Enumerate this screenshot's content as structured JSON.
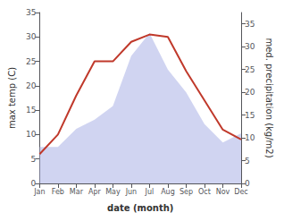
{
  "chart_data": {
    "type": "line",
    "xlabel": "date (month)",
    "ylabel": "max temp (C)",
    "y2label": "med. precipitation (kg/m2)",
    "categories": [
      "Jan",
      "Feb",
      "Mar",
      "Apr",
      "May",
      "Jun",
      "Jul",
      "Aug",
      "Sep",
      "Oct",
      "Nov",
      "Dec"
    ],
    "series": [
      {
        "type": "area",
        "axis": "y2",
        "color": "#b0b8e8",
        "values": [
          8,
          8,
          12,
          14,
          17,
          28,
          33,
          25,
          20,
          13,
          9,
          11
        ]
      },
      {
        "type": "line",
        "color": "#c0392b",
        "values": [
          6,
          10,
          18,
          25,
          25,
          29,
          30.5,
          30,
          23,
          17,
          11,
          9
        ]
      }
    ],
    "ylim": [
      0,
      35
    ],
    "yticks": [
      0,
      5,
      10,
      15,
      20,
      25,
      30,
      35
    ],
    "y2lim": [
      0,
      37.5
    ],
    "y2ticks": [
      0,
      5,
      10,
      15,
      20,
      25,
      30,
      35
    ],
    "grid": false
  }
}
